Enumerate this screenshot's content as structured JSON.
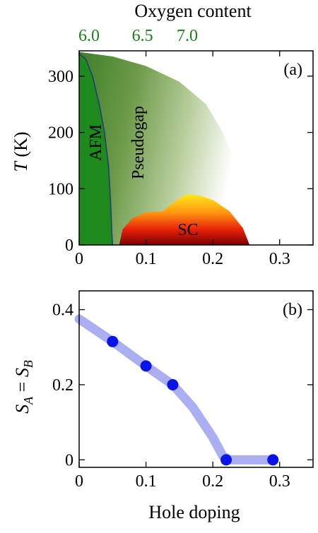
{
  "chart_data": [
    {
      "type": "area",
      "panel": "a",
      "panel_label": "(a)",
      "top_axis_title": "Oxygen content",
      "top_tick_labels": [
        "6.0",
        "6.5",
        "7.0"
      ],
      "top_tick_positions_x": [
        0.0,
        0.08,
        0.147
      ],
      "ylabel_var": "T",
      "ylabel_unit": " (K)",
      "xlim": [
        0,
        0.35
      ],
      "ylim": [
        0,
        345
      ],
      "x_ticks": [
        0,
        0.1,
        0.2,
        0.3
      ],
      "x_tick_labels": [
        "0",
        "0.1",
        "0.2",
        "0.3"
      ],
      "y_ticks": [
        0,
        100,
        200,
        300
      ],
      "y_tick_labels": [
        "0",
        "100",
        "200",
        "300"
      ],
      "regions": [
        {
          "name": "AFM",
          "label": "AFM",
          "color": "#1e8a1e",
          "boundary": [
            [
              0,
              340
            ],
            [
              0.01,
              330
            ],
            [
              0.02,
              300
            ],
            [
              0.03,
              250
            ],
            [
              0.038,
              200
            ],
            [
              0.044,
              140
            ],
            [
              0.047,
              80
            ],
            [
              0.049,
              20
            ],
            [
              0.05,
              0
            ]
          ]
        },
        {
          "name": "Pseudogap",
          "label": "Pseudogap",
          "color": "#4f8a2e",
          "boundary": [
            [
              0,
              343
            ],
            [
              0.05,
              335
            ],
            [
              0.1,
              318
            ],
            [
              0.15,
              290
            ],
            [
              0.19,
              250
            ],
            [
              0.215,
              200
            ],
            [
              0.235,
              140
            ],
            [
              0.245,
              80
            ],
            [
              0.25,
              0
            ]
          ]
        },
        {
          "name": "SC",
          "label": "SC",
          "color_top": "#ffe81a",
          "color_bottom": "#8b0000",
          "boundary": [
            [
              0.06,
              0
            ],
            [
              0.065,
              28
            ],
            [
              0.08,
              48
            ],
            [
              0.1,
              58
            ],
            [
              0.125,
              60
            ],
            [
              0.14,
              75
            ],
            [
              0.16,
              90
            ],
            [
              0.18,
              88
            ],
            [
              0.2,
              80
            ],
            [
              0.225,
              60
            ],
            [
              0.245,
              30
            ],
            [
              0.255,
              0
            ]
          ]
        }
      ]
    },
    {
      "type": "scatter",
      "panel": "b",
      "panel_label": "(b)",
      "xlabel": "Hole doping",
      "ylabel": "S_A = S_B",
      "ylabel_parts": {
        "s1": "S",
        "sub1": "A",
        "eq": " = ",
        "s2": "S",
        "sub2": "B"
      },
      "xlim": [
        0,
        0.35
      ],
      "ylim": [
        -0.02,
        0.45
      ],
      "x_ticks": [
        0,
        0.1,
        0.2,
        0.3
      ],
      "x_tick_labels": [
        "0",
        "0.1",
        "0.2",
        "0.3"
      ],
      "y_ticks": [
        0,
        0.2,
        0.4
      ],
      "y_tick_labels": [
        "0",
        "0.2",
        "0.4"
      ],
      "points": {
        "x": [
          0.05,
          0.1,
          0.14,
          0.22,
          0.29
        ],
        "y": [
          0.315,
          0.25,
          0.2,
          0.0,
          0.0
        ],
        "color": "#0a14e6"
      },
      "trend": {
        "x": [
          0.0,
          0.05,
          0.1,
          0.14,
          0.17,
          0.2,
          0.215,
          0.225,
          0.25,
          0.29
        ],
        "y": [
          0.375,
          0.315,
          0.25,
          0.2,
          0.14,
          0.06,
          0.01,
          0.0,
          0.0,
          0.0
        ],
        "color": "#8f94ee"
      }
    }
  ]
}
